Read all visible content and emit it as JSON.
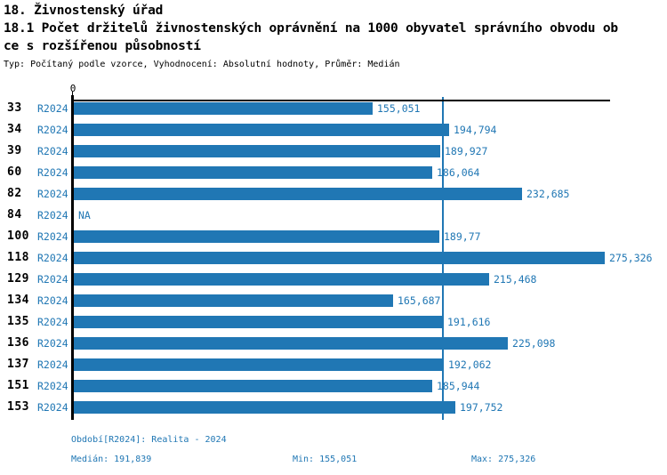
{
  "header": {
    "title": "18. Živnostenský úřad",
    "subtitle_line1": "18.1 Počet držitelů živnostenských oprávnění na 1000 obyvatel správního obvodu ob",
    "subtitle_line2": "ce s rozšířenou působností",
    "meta": "Typ: Počítaný podle vzorce, Vyhodnocení: Absolutní hodnoty, Průměr: Medián"
  },
  "chart_data": {
    "type": "bar",
    "orientation": "horizontal",
    "title": "18.1 Počet držitelů živnostenských oprávnění na 1000 obyvatel správního obvodu obce s rozšířenou působností",
    "axis_origin_label": "0",
    "period_label": "R2024",
    "categories": [
      "33",
      "34",
      "39",
      "60",
      "82",
      "84",
      "100",
      "118",
      "129",
      "134",
      "135",
      "136",
      "137",
      "151",
      "153"
    ],
    "values": [
      155.051,
      194.794,
      189.927,
      186.064,
      232.685,
      null,
      189.77,
      275.326,
      215.468,
      165.687,
      191.616,
      225.098,
      192.062,
      185.944,
      197.752
    ],
    "value_labels": [
      "155,051",
      "194,794",
      "189,927",
      "186,064",
      "232,685",
      "NA",
      "189,77",
      "275,326",
      "215,468",
      "165,687",
      "191,616",
      "225,098",
      "192,062",
      "185,944",
      "197,752"
    ],
    "median": 191.839,
    "min": 155.051,
    "max": 275.326,
    "xlim": [
      0,
      278.5
    ],
    "grid": false,
    "legend": false,
    "colors": {
      "bar": "#2077b4",
      "median_line": "#2077b4",
      "axis": "#000000",
      "label_blue": "#2077b4"
    }
  },
  "footer": {
    "period": "Období[R2024]: Realita - 2024",
    "median": "Medián: 191,839",
    "min": "Min: 155,051",
    "max": "Max: 275,326"
  }
}
